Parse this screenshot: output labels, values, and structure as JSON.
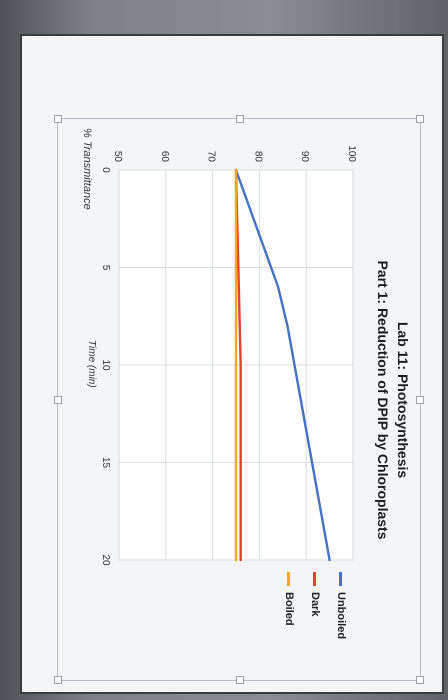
{
  "chart_data": {
    "type": "line",
    "title": "Lab 11: Photosynthesis",
    "subtitle": "Part 1: Reduction of DPIP by Chloroplasts",
    "xlabel": "Time (min)",
    "ylabel": "% Transmittance",
    "xlim": [
      0,
      20
    ],
    "ylim": [
      50,
      100
    ],
    "x_ticks": [
      "0",
      "5",
      "10",
      "15",
      "20"
    ],
    "y_ticks": [
      "50",
      "60",
      "70",
      "80",
      "90",
      "100"
    ],
    "grid": true,
    "legend_position": "right",
    "series": [
      {
        "name": "Unboiled",
        "color": "#4472c4",
        "x": [
          0,
          2,
          4,
          6,
          8,
          10,
          12,
          14,
          16,
          18,
          20
        ],
        "y": [
          75,
          78,
          81,
          84,
          86,
          87.5,
          89,
          90.5,
          92,
          93.5,
          95
        ]
      },
      {
        "name": "Dark",
        "color": "#e0442a",
        "x": [
          0,
          5,
          10,
          15,
          20
        ],
        "y": [
          75,
          75.5,
          76,
          76,
          76
        ]
      },
      {
        "name": "Boiled",
        "color": "#f5a623",
        "x": [
          0,
          5,
          10,
          15,
          20
        ],
        "y": [
          75,
          75,
          75,
          75,
          75
        ]
      }
    ]
  }
}
